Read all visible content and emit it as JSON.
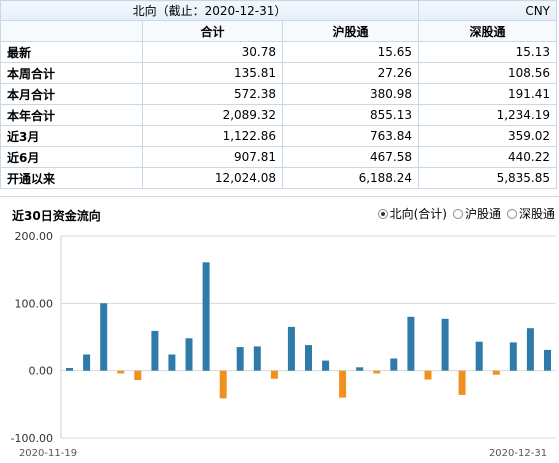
{
  "header": {
    "title": "北向（截止：2020-12-31）",
    "currency": "CNY"
  },
  "table": {
    "columns": [
      "合计",
      "沪股通",
      "深股通"
    ],
    "rows": [
      {
        "label": "最新",
        "values": [
          "30.78",
          "15.65",
          "15.13"
        ]
      },
      {
        "label": "本周合计",
        "values": [
          "135.81",
          "27.26",
          "108.56"
        ]
      },
      {
        "label": "本月合计",
        "values": [
          "572.38",
          "380.98",
          "191.41"
        ]
      },
      {
        "label": "本年合计",
        "values": [
          "2,089.32",
          "855.13",
          "1,234.19"
        ]
      },
      {
        "label": "近3月",
        "values": [
          "1,122.86",
          "763.84",
          "359.02"
        ]
      },
      {
        "label": "近6月",
        "values": [
          "907.81",
          "467.58",
          "440.22"
        ]
      },
      {
        "label": "开通以来",
        "values": [
          "12,024.08",
          "6,188.24",
          "5,835.85"
        ]
      }
    ]
  },
  "flow": {
    "title": "近30日资金流向",
    "options": [
      {
        "label": "北向(合计)",
        "selected": true
      },
      {
        "label": "沪股通",
        "selected": false
      },
      {
        "label": "深股通",
        "selected": false
      }
    ]
  },
  "colors": {
    "positive": "#2e7aa8",
    "negative": "#f0901e",
    "border": "#c9d7ea"
  },
  "chart_data": {
    "type": "bar",
    "title": "近30日资金流向",
    "ylim": [
      -100,
      200
    ],
    "yticks": [
      "200.00",
      "100.00",
      "0.00",
      "-100.00"
    ],
    "ytick_values": [
      200,
      100,
      0,
      -100
    ],
    "x_start_label": "2020-11-19",
    "x_end_label": "2020-12-31",
    "grid": true,
    "values": [
      4,
      24,
      100,
      -4,
      -14,
      59,
      24,
      48,
      161,
      -41,
      35,
      36,
      -12,
      65,
      38,
      15,
      -40,
      5,
      -4,
      18,
      80,
      -13,
      77,
      -36,
      43,
      -6,
      42,
      63,
      30.78
    ]
  }
}
